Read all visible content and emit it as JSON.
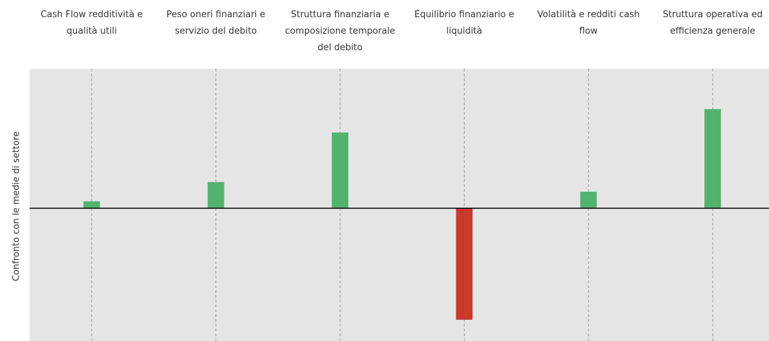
{
  "chart_data": {
    "type": "bar",
    "y_label": "Confronto con le medie di settore",
    "categories": [
      "Cash Flow redditività e qualità utili",
      "Peso oneri finanziari e servizio del debito",
      "Struttura finanziaria e composizione temporale del debito",
      "Equilibrio finanziario e liquidità",
      "Volatilità e redditi cash flow",
      "Struttura operativa ed efficienza generale"
    ],
    "values": [
      5.2,
      19.7,
      57,
      -84,
      12.4,
      74.6
    ],
    "colors": [
      "#52b36f",
      "#52b36f",
      "#52b36f",
      "#c93a2c",
      "#52b36f",
      "#52b36f"
    ],
    "ylim": [
      -100,
      105
    ],
    "grid": true
  }
}
